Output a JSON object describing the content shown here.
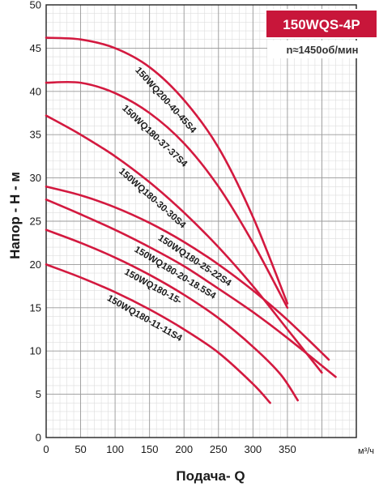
{
  "chart_data": {
    "type": "line",
    "title": "150WQS-4P",
    "speed": "n≈1450об/мин",
    "xlabel": "Подача- Q",
    "ylabel": "Напор - H - м",
    "xunit": "м³/ч",
    "xlim": [
      0,
      450
    ],
    "ylim": [
      0,
      50
    ],
    "xticks": [
      0,
      50,
      100,
      150,
      200,
      250,
      300,
      350
    ],
    "yticks": [
      0,
      5,
      10,
      15,
      20,
      25,
      30,
      35,
      40,
      45,
      50
    ],
    "grid": true,
    "series": [
      {
        "name": "150WQ200-40-45S4",
        "x": [
          0,
          50,
          100,
          150,
          200,
          250,
          300,
          350
        ],
        "y": [
          46.2,
          46.0,
          45.0,
          42.8,
          39.0,
          33.5,
          25.5,
          15.5
        ]
      },
      {
        "name": "150WQ180-37-37S4",
        "x": [
          0,
          50,
          100,
          150,
          200,
          250,
          300,
          350
        ],
        "y": [
          41.0,
          41.0,
          39.8,
          37.5,
          34.0,
          29.0,
          22.5,
          15.0
        ]
      },
      {
        "name": "150WQ180-30-30S4",
        "x": [
          0,
          50,
          100,
          150,
          200,
          250,
          300,
          350,
          400
        ],
        "y": [
          37.2,
          35.0,
          32.5,
          29.5,
          26.0,
          22.0,
          17.5,
          12.5,
          7.5
        ]
      },
      {
        "name": "150WQ180-25-22S4",
        "x": [
          0,
          50,
          100,
          150,
          200,
          250,
          300,
          350,
          410
        ],
        "y": [
          29.0,
          28.0,
          26.6,
          24.8,
          22.6,
          20.0,
          17.0,
          13.6,
          9.0
        ]
      },
      {
        "name": "150WQ180-20-18.5S4",
        "x": [
          0,
          50,
          100,
          150,
          200,
          250,
          300,
          350,
          420
        ],
        "y": [
          27.5,
          25.8,
          24.0,
          22.0,
          19.8,
          17.2,
          14.5,
          11.5,
          7.0
        ]
      },
      {
        "name": "150WQ180-15-",
        "x": [
          0,
          50,
          100,
          150,
          200,
          250,
          300,
          340,
          365
        ],
        "y": [
          24.0,
          22.5,
          20.8,
          18.8,
          16.5,
          13.8,
          10.5,
          7.3,
          4.3
        ]
      },
      {
        "name": "150WQ180-11-11S4",
        "x": [
          0,
          50,
          100,
          150,
          200,
          250,
          300,
          325
        ],
        "y": [
          20.0,
          18.5,
          16.8,
          14.8,
          12.5,
          9.8,
          6.2,
          4.0
        ]
      }
    ]
  }
}
